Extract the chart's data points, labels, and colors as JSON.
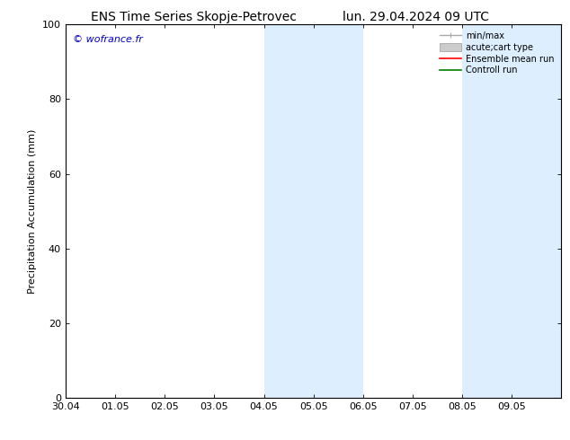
{
  "title_left": "ENS Time Series Skopje-Petrovec",
  "title_right": "lun. 29.04.2024 09 UTC",
  "ylabel": "Precipitation Accumulation (mm)",
  "ylim": [
    0,
    100
  ],
  "yticks": [
    0,
    20,
    40,
    60,
    80,
    100
  ],
  "copyright_text": "© wofrance.fr",
  "copyright_color": "#0000cc",
  "x_tick_labels": [
    "30.04",
    "01.05",
    "02.05",
    "03.05",
    "04.05",
    "05.05",
    "06.05",
    "07.05",
    "08.05",
    "09.05"
  ],
  "x_tick_offsets": [
    1,
    2,
    3,
    4,
    5,
    6,
    7,
    8,
    9,
    10
  ],
  "shaded_regions": [
    {
      "xmin": 5,
      "xmax": 6,
      "color": "#ddeeff"
    },
    {
      "xmin": 6,
      "xmax": 7,
      "color": "#ddeeff"
    },
    {
      "xmin": 9,
      "xmax": 10,
      "color": "#ddeeff"
    },
    {
      "xmin": 10,
      "xmax": 11,
      "color": "#ddeeff"
    }
  ],
  "xlim_min": 1,
  "xlim_max": 11,
  "legend_items": [
    {
      "label": "min/max",
      "color": "#aaaaaa",
      "lw": 1.0
    },
    {
      "label": "acute;cart type",
      "color": "#cccccc",
      "lw": 5
    },
    {
      "label": "Ensemble mean run",
      "color": "#ff0000",
      "lw": 1.2
    },
    {
      "label": "Controll run",
      "color": "#008000",
      "lw": 1.2
    }
  ],
  "bg_color": "#ffffff",
  "font_size": 8,
  "title_font_size": 10
}
